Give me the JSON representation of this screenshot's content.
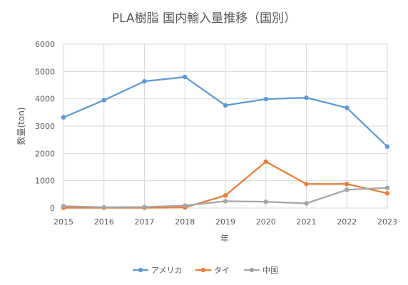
{
  "chart_data": {
    "type": "line",
    "title": "PLA樹脂 国内輸入量推移（国別）",
    "xlabel": "年",
    "ylabel": "数量(ton)",
    "x": [
      "2015",
      "2016",
      "2017",
      "2018",
      "2019",
      "2020",
      "2021",
      "2022",
      "2023"
    ],
    "yticks": [
      "0",
      "1000",
      "2000",
      "3000",
      "4000",
      "5000",
      "6000"
    ],
    "ylim": [
      0,
      6000
    ],
    "grid": "horizontal",
    "legend_position": "bottom",
    "series": [
      {
        "name": "アメリカ",
        "color": "#5B9BD5",
        "values": [
          3320,
          3950,
          4640,
          4800,
          3760,
          3990,
          4040,
          3670,
          2250
        ]
      },
      {
        "name": "タイ",
        "color": "#ED7D31",
        "values": [
          10,
          10,
          10,
          20,
          460,
          1700,
          880,
          880,
          540
        ]
      },
      {
        "name": "中国",
        "color": "#A5A5A5",
        "values": [
          70,
          30,
          40,
          90,
          250,
          230,
          170,
          670,
          740
        ]
      }
    ]
  }
}
